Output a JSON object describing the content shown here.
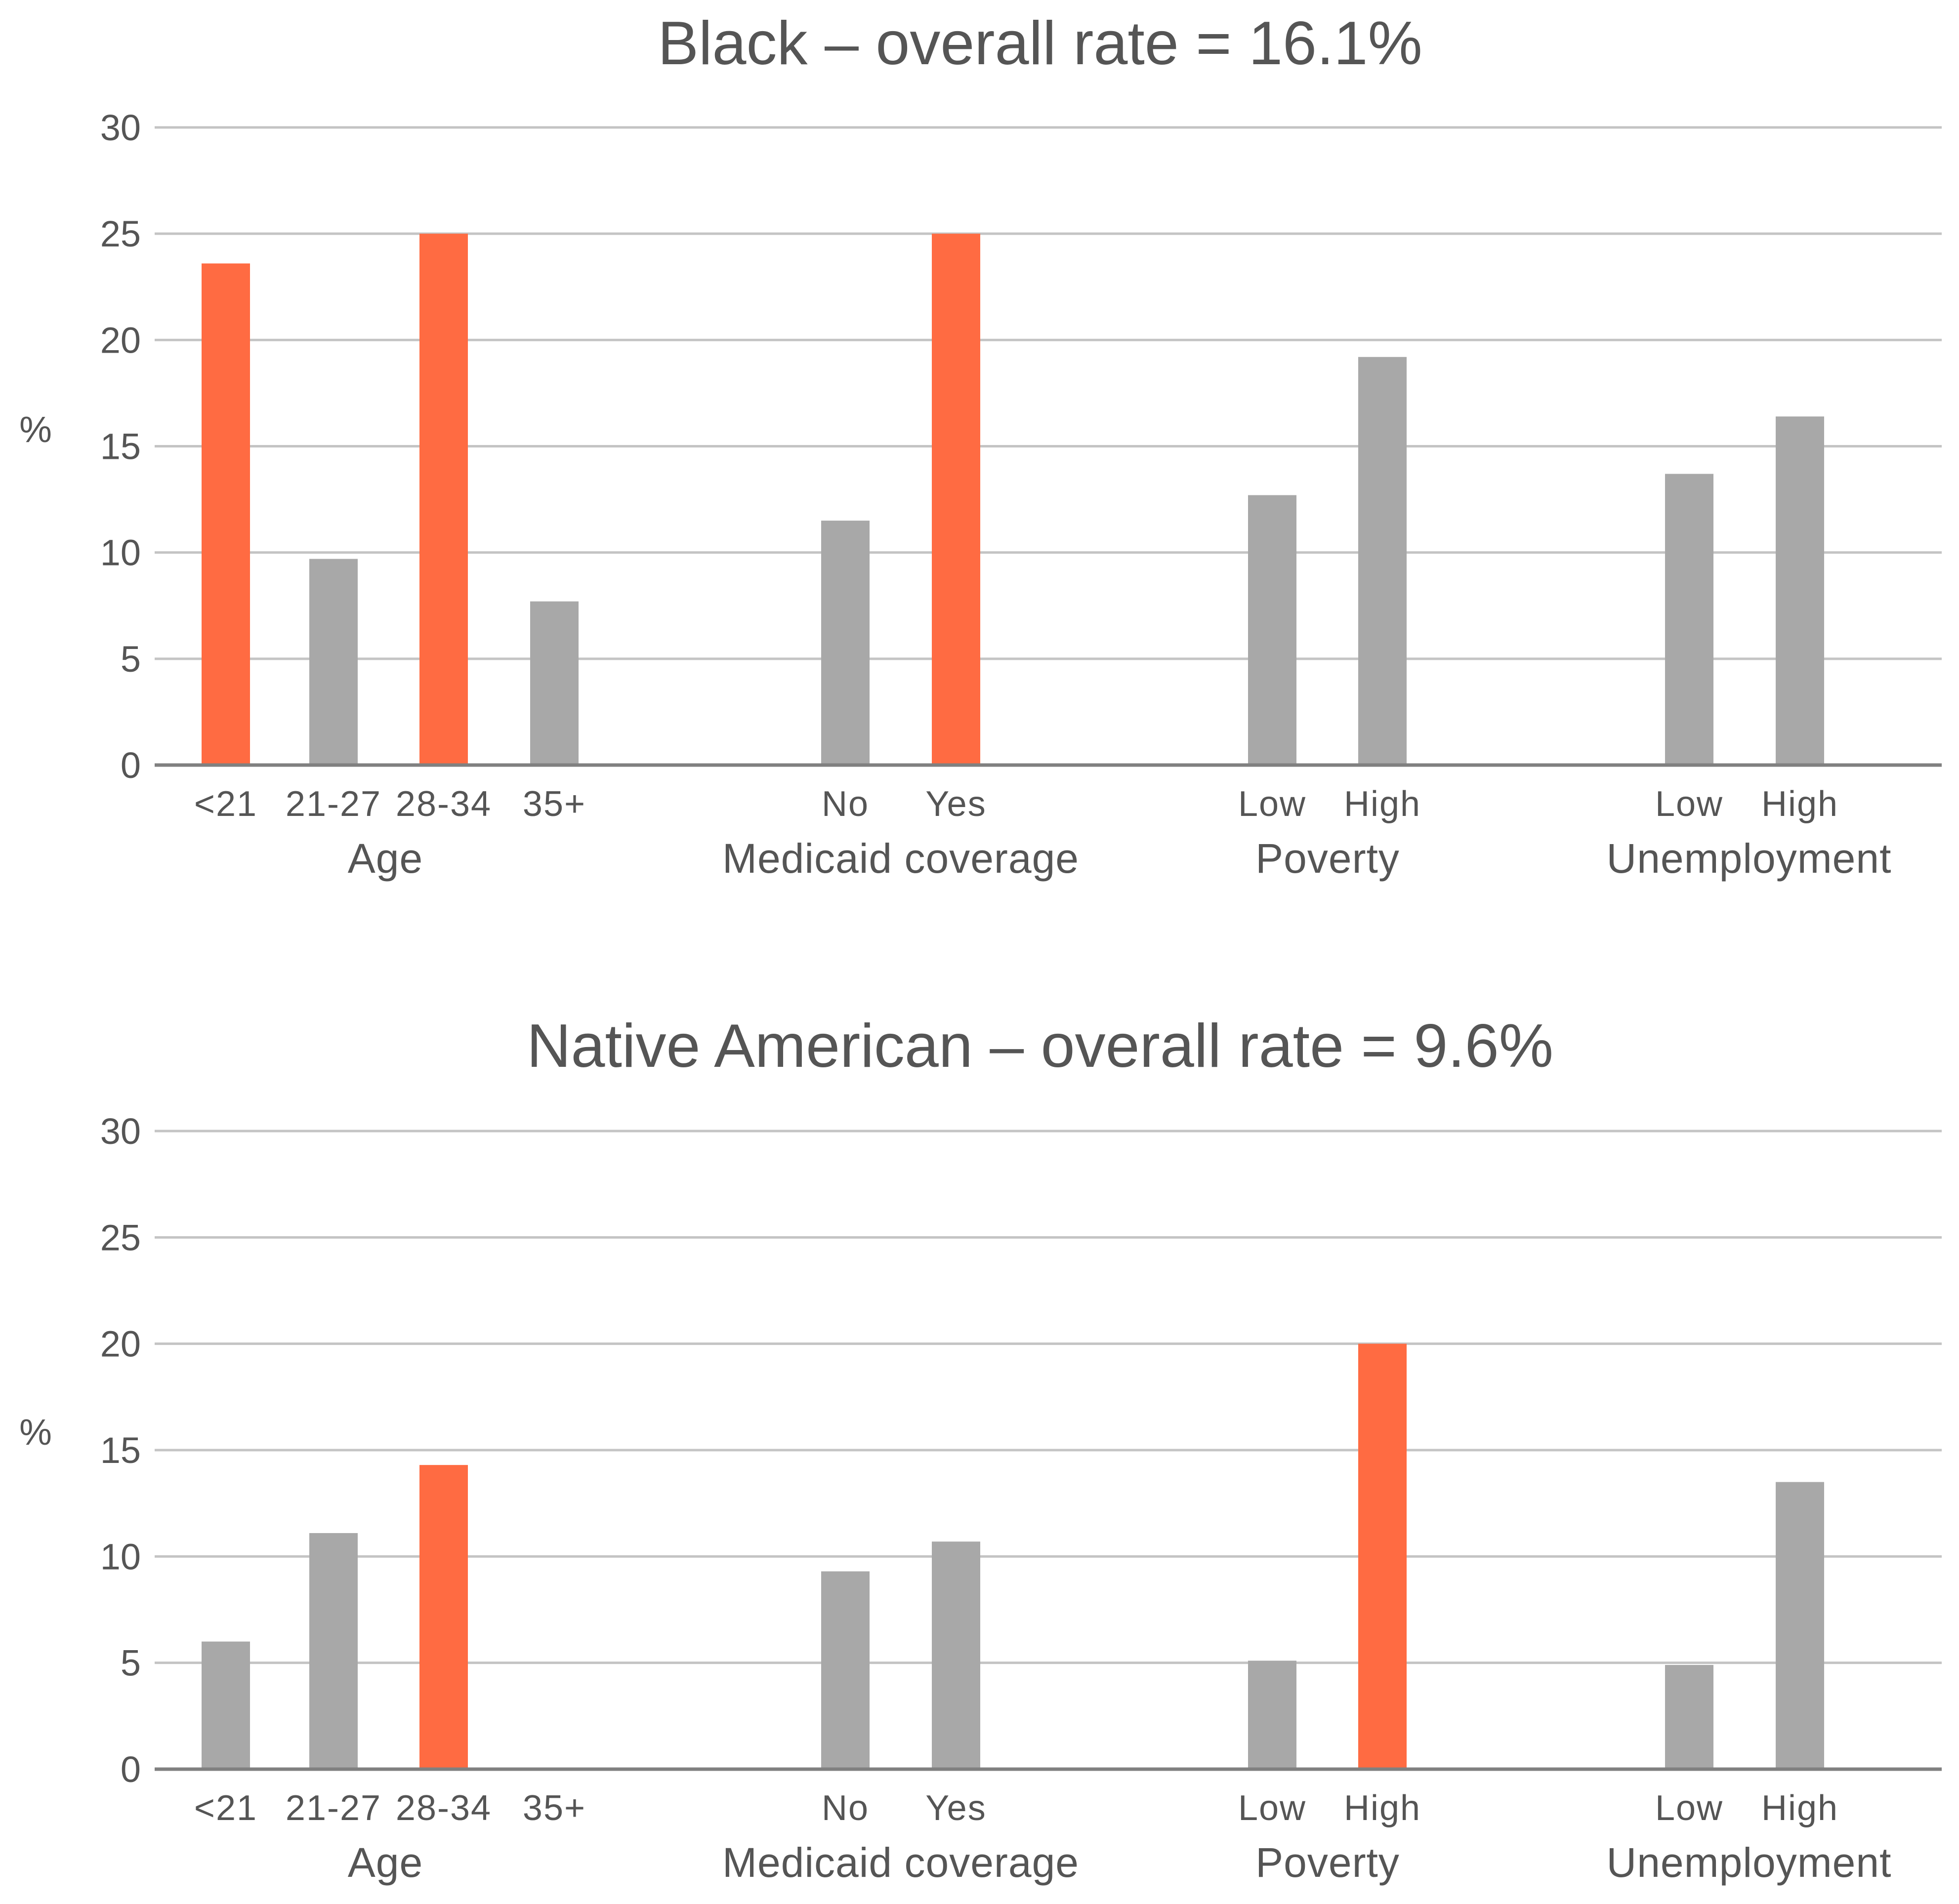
{
  "palette": {
    "highlight": "#ff6b42",
    "normal": "#a8a8a8",
    "text": "#555555",
    "grid": "#c4c4c4",
    "axis": "#808080"
  },
  "chart_data": [
    {
      "type": "bar",
      "title": "Black – overall rate = 16.1%",
      "ylabel": "%",
      "ylim": [
        0,
        30
      ],
      "yticks": [
        "0",
        "5",
        "10",
        "15",
        "20",
        "25",
        "30"
      ],
      "grid": true,
      "groups": [
        {
          "label": "Age",
          "categories": [
            "<21",
            "21-27",
            "28-34",
            "35+"
          ],
          "values": [
            23.6,
            9.7,
            25.0,
            7.7
          ],
          "highlight": [
            true,
            false,
            true,
            false
          ]
        },
        {
          "label": "Medicaid coverage",
          "categories": [
            "No",
            "Yes"
          ],
          "values": [
            11.5,
            25.0
          ],
          "highlight": [
            false,
            true
          ]
        },
        {
          "label": "Poverty",
          "categories": [
            "Low",
            "High"
          ],
          "values": [
            12.7,
            19.2
          ],
          "highlight": [
            false,
            false
          ]
        },
        {
          "label": "Unemployment",
          "categories": [
            "Low",
            "High"
          ],
          "values": [
            13.7,
            16.4
          ],
          "highlight": [
            false,
            false
          ]
        }
      ]
    },
    {
      "type": "bar",
      "title": "Native American – overall rate = 9.6%",
      "ylabel": "%",
      "ylim": [
        0,
        30
      ],
      "yticks": [
        "0",
        "5",
        "10",
        "15",
        "20",
        "25",
        "30"
      ],
      "grid": true,
      "groups": [
        {
          "label": "Age",
          "categories": [
            "<21",
            "21-27",
            "28-34",
            "35+"
          ],
          "values": [
            6.0,
            11.1,
            14.3,
            0
          ],
          "highlight": [
            false,
            false,
            true,
            false
          ]
        },
        {
          "label": "Medicaid coverage",
          "categories": [
            "No",
            "Yes"
          ],
          "values": [
            9.3,
            10.7
          ],
          "highlight": [
            false,
            false
          ]
        },
        {
          "label": "Poverty",
          "categories": [
            "Low",
            "High"
          ],
          "values": [
            5.1,
            20.0
          ],
          "highlight": [
            false,
            true
          ]
        },
        {
          "label": "Unemployment",
          "categories": [
            "Low",
            "High"
          ],
          "values": [
            4.9,
            13.5
          ],
          "highlight": [
            false,
            false
          ]
        }
      ]
    }
  ]
}
